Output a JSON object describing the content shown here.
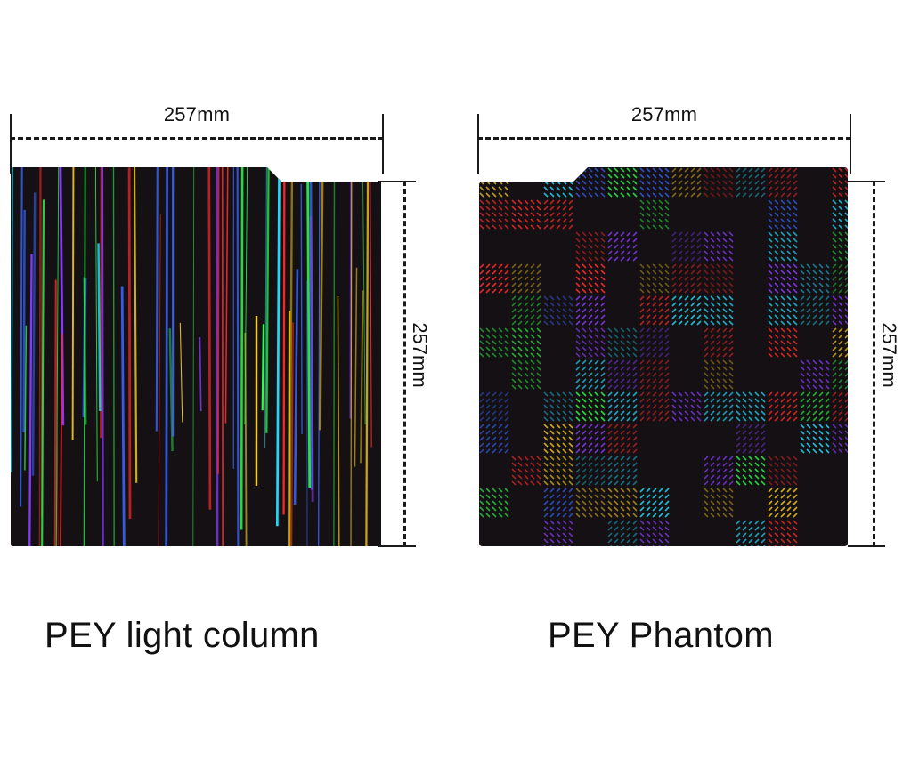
{
  "products": [
    {
      "name": "PEY light column",
      "width_label": "257mm",
      "height_label": "257mm",
      "pattern": "vertical-rainbow-streaks"
    },
    {
      "name": "PEY Phantom",
      "width_label": "257mm",
      "height_label": "257mm",
      "pattern": "holographic-diagonal-mosaic"
    }
  ],
  "colors": {
    "plate_base": "#141014",
    "dimension_lines": "#1a1a1a",
    "tab": "#d8c8b4",
    "streaks": [
      "#2aff4a",
      "#3a64ff",
      "#ff2a2a",
      "#ffd21e",
      "#8a3cff",
      "#22e0ff"
    ]
  }
}
